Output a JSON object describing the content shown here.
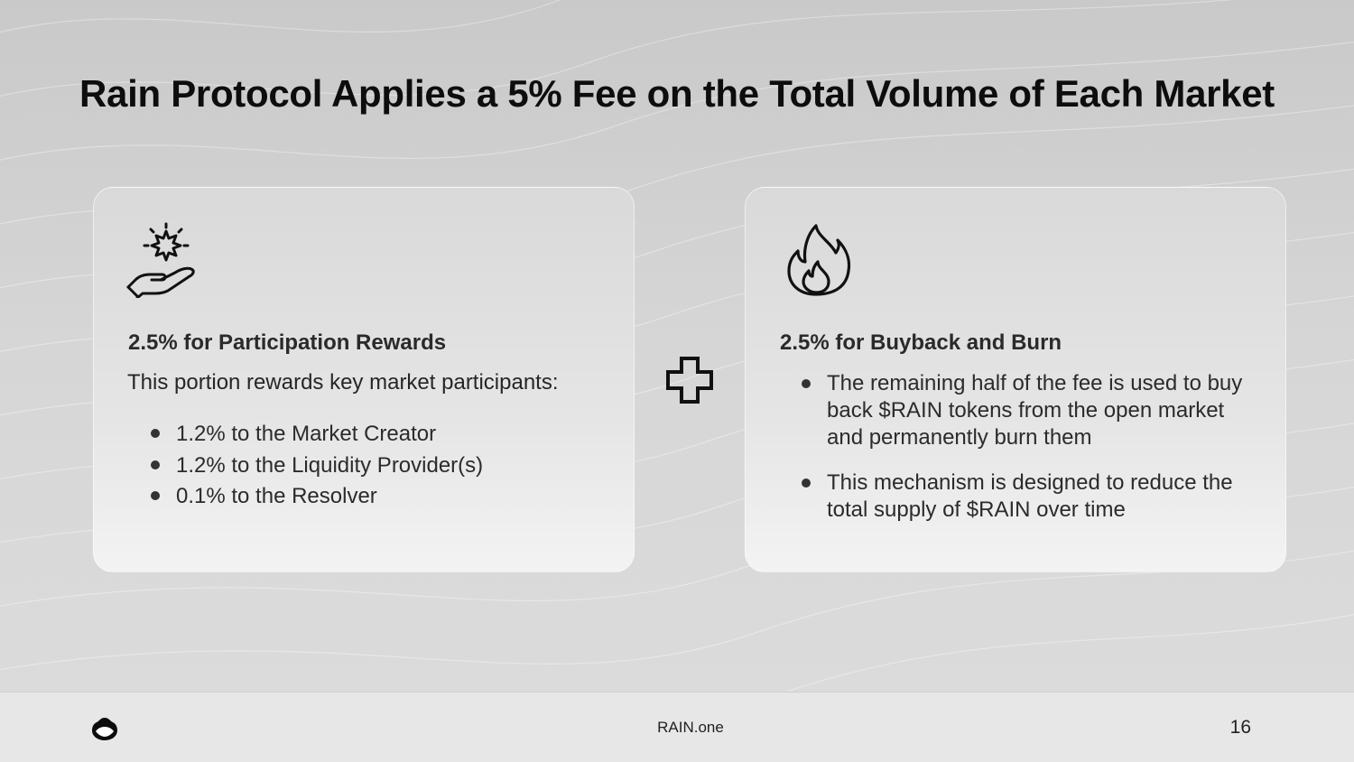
{
  "slide": {
    "title": "Rain Protocol Applies a 5% Fee on the Total Volume of Each Market"
  },
  "cards": {
    "left": {
      "icon": "hand-holding-sparkle-icon",
      "heading": "2.5% for Participation Rewards",
      "text": "This portion rewards key market participants:",
      "items": [
        "1.2% to the Market Creator",
        "1.2% to the Liquidity Provider(s)",
        "0.1% to the Resolver"
      ]
    },
    "right": {
      "icon": "fire-icon",
      "heading": "2.5% for Buyback and Burn",
      "items": [
        "The remaining half of the fee is used to buy back $RAIN tokens from the open market and permanently burn them",
        "This mechanism is designed to reduce the total supply of $RAIN over time"
      ]
    }
  },
  "connector": {
    "icon": "plus-icon"
  },
  "footer": {
    "logo": "rain-logo-icon",
    "site": "RAIN.one",
    "page_number": "16"
  },
  "colors": {
    "background": "#d0d0d0",
    "card": "#e3e3e3",
    "text": "#111111",
    "footer": "#e7e7e7"
  }
}
